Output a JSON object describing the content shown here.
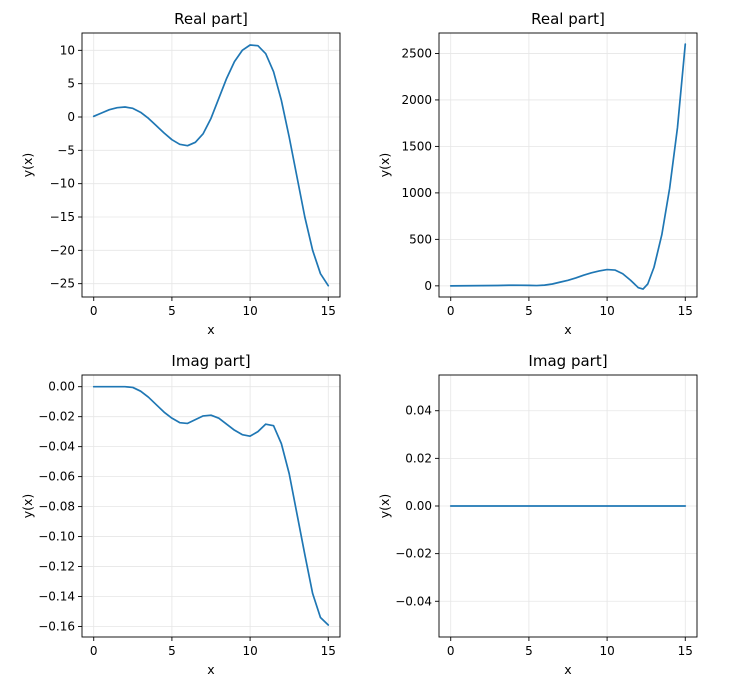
{
  "chart_data": [
    {
      "type": "line",
      "title": "Real part]",
      "xlabel": "x",
      "ylabel": "y(x)",
      "xlim": [
        -0.75,
        15.75
      ],
      "ylim": [
        -27.0,
        12.6
      ],
      "xticks": [
        0,
        5,
        10,
        15
      ],
      "yticks": [
        10,
        5,
        0,
        -5,
        -10,
        -15,
        -20,
        -25
      ],
      "grid": true,
      "series": [
        {
          "color": "#1f77b4",
          "x": [
            0,
            0.5,
            1,
            1.5,
            2,
            2.5,
            3,
            3.5,
            4,
            4.5,
            5,
            5.5,
            6,
            6.5,
            7,
            7.5,
            8,
            8.5,
            9,
            9.5,
            10,
            10.5,
            11,
            11.5,
            12,
            12.5,
            13,
            13.5,
            14,
            14.5,
            15
          ],
          "y": [
            0.1,
            0.6,
            1.1,
            1.4,
            1.5,
            1.3,
            0.7,
            -0.2,
            -1.3,
            -2.4,
            -3.4,
            -4.1,
            -4.3,
            -3.8,
            -2.5,
            -0.2,
            2.8,
            5.8,
            8.3,
            10.0,
            10.8,
            10.7,
            9.5,
            6.8,
            2.5,
            -3.0,
            -9.0,
            -15.0,
            -20.0,
            -23.5,
            -25.3
          ]
        }
      ]
    },
    {
      "type": "line",
      "title": "Real part]",
      "xlabel": "x",
      "ylabel": "y(x)",
      "xlim": [
        -0.75,
        15.75
      ],
      "ylim": [
        -120,
        2720
      ],
      "xticks": [
        0,
        5,
        10,
        15
      ],
      "yticks": [
        2500,
        2000,
        1500,
        1000,
        500,
        0
      ],
      "grid": true,
      "series": [
        {
          "color": "#1f77b4",
          "x": [
            0,
            1,
            2,
            3,
            4,
            5,
            5.5,
            6,
            6.5,
            7,
            7.5,
            8,
            8.5,
            9,
            9.5,
            10,
            10.5,
            11,
            11.5,
            12,
            12.3,
            12.6,
            13,
            13.5,
            14,
            14.5,
            15
          ],
          "y": [
            0,
            1,
            2,
            4,
            7,
            5,
            3,
            8,
            20,
            40,
            60,
            85,
            115,
            140,
            160,
            175,
            170,
            130,
            60,
            -20,
            -35,
            20,
            200,
            550,
            1050,
            1700,
            2600
          ]
        }
      ]
    },
    {
      "type": "line",
      "title": "Imag part]",
      "xlabel": "x",
      "ylabel": "y(x)",
      "xlim": [
        -0.75,
        15.75
      ],
      "ylim": [
        -0.167,
        0.0078
      ],
      "xticks": [
        0,
        5,
        10,
        15
      ],
      "yticks": [
        0.0,
        -0.02,
        -0.04,
        -0.06,
        -0.08,
        -0.1,
        -0.12,
        -0.14,
        -0.16
      ],
      "ytick_labels": [
        "0.00",
        "−0.02",
        "−0.04",
        "−0.06",
        "−0.08",
        "−0.10",
        "−0.12",
        "−0.14",
        "−0.16"
      ],
      "grid": true,
      "series": [
        {
          "color": "#1f77b4",
          "x": [
            0,
            0.5,
            1,
            1.5,
            2,
            2.5,
            3,
            3.5,
            4,
            4.5,
            5,
            5.5,
            6,
            6.5,
            7,
            7.5,
            8,
            8.5,
            9,
            9.5,
            10,
            10.5,
            11,
            11.5,
            12,
            12.5,
            13,
            13.5,
            14,
            14.5,
            15
          ],
          "y": [
            0,
            0,
            0,
            0,
            0,
            -0.0005,
            -0.003,
            -0.007,
            -0.012,
            -0.017,
            -0.021,
            -0.024,
            -0.0245,
            -0.022,
            -0.0195,
            -0.019,
            -0.021,
            -0.025,
            -0.029,
            -0.032,
            -0.033,
            -0.03,
            -0.025,
            -0.026,
            -0.038,
            -0.058,
            -0.085,
            -0.112,
            -0.138,
            -0.154,
            -0.159
          ]
        }
      ]
    },
    {
      "type": "line",
      "title": "Imag part]",
      "xlabel": "x",
      "ylabel": "y(x)",
      "xlim": [
        -0.75,
        15.75
      ],
      "ylim": [
        -0.055,
        0.055
      ],
      "xticks": [
        0,
        5,
        10,
        15
      ],
      "yticks": [
        0.04,
        0.02,
        0.0,
        -0.02,
        -0.04
      ],
      "ytick_labels": [
        "0.04",
        "0.02",
        "0.00",
        "−0.02",
        "−0.04"
      ],
      "grid": true,
      "series": [
        {
          "color": "#1f77b4",
          "x": [
            0,
            15
          ],
          "y": [
            0,
            0
          ]
        }
      ]
    }
  ]
}
